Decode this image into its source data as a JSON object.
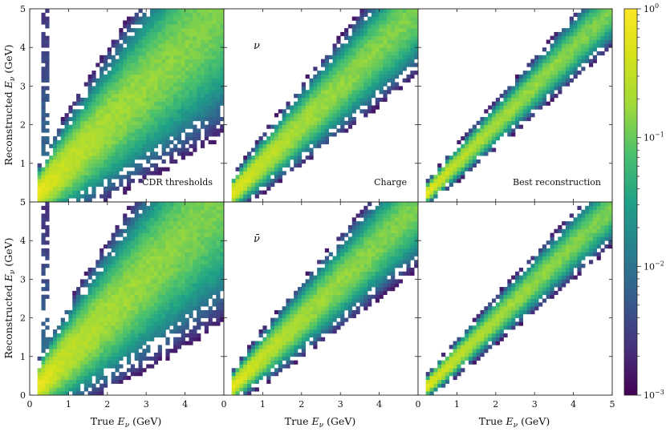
{
  "chart_data": {
    "type": "heatmap",
    "layout": {
      "rows": 2,
      "cols": 3
    },
    "xlabel": "True E_ν (GeV)",
    "ylabel": "Reconstructed E_ν (GeV)",
    "x_axis_label_parts": {
      "main": "True ",
      "var": "E",
      "sub": "ν",
      "unit": " (GeV)"
    },
    "y_axis_label_parts": {
      "main": "Reconstructed ",
      "var": "E",
      "sub": "ν",
      "unit": " (GeV)"
    },
    "xlim": [
      0,
      5
    ],
    "ylim": [
      0,
      5
    ],
    "x_ticks": [
      "0",
      "1",
      "2",
      "3",
      "4",
      "0",
      "1",
      "2",
      "3",
      "4",
      "0",
      "1",
      "2",
      "3",
      "4",
      "5"
    ],
    "y_ticks_top": [
      "1",
      "2",
      "3",
      "4",
      "5"
    ],
    "y_ticks_bottom": [
      "0",
      "1",
      "2",
      "3",
      "4",
      "5"
    ],
    "columns": [
      "CDR thresholds",
      "Charge",
      "Best reconstruction"
    ],
    "rows": [
      "ν",
      "ν̄"
    ],
    "colorbar": {
      "scale": "log",
      "colormap": "viridis",
      "range": [
        0.001,
        1
      ],
      "tick_labels": [
        {
          "base": "10",
          "exp": "0",
          "value": 1
        },
        {
          "base": "10",
          "exp": "−1",
          "value": 0.1
        },
        {
          "base": "10",
          "exp": "−2",
          "value": 0.01
        },
        {
          "base": "10",
          "exp": "−3",
          "value": 0.001
        }
      ]
    },
    "panels": [
      {
        "row": 0,
        "col": 0,
        "label": "CDR thresholds",
        "particle": "",
        "spread": 0.3,
        "bias": 0.0,
        "low_energy_band": true
      },
      {
        "row": 0,
        "col": 1,
        "label": "Charge",
        "particle": "ν",
        "spread": 0.15,
        "bias": 0.0,
        "low_energy_band": false
      },
      {
        "row": 0,
        "col": 2,
        "label": "Best reconstruction",
        "particle": "",
        "spread": 0.08,
        "bias": 0.0,
        "low_energy_band": false
      },
      {
        "row": 1,
        "col": 0,
        "label": "",
        "particle": "",
        "spread": 0.3,
        "bias": 0.03,
        "low_energy_band": true
      },
      {
        "row": 1,
        "col": 1,
        "label": "",
        "particle": "ν̄",
        "spread": 0.14,
        "bias": -0.02,
        "low_energy_band": false
      },
      {
        "row": 1,
        "col": 2,
        "label": "",
        "particle": "",
        "spread": 0.08,
        "bias": -0.03,
        "low_energy_band": false
      }
    ]
  }
}
